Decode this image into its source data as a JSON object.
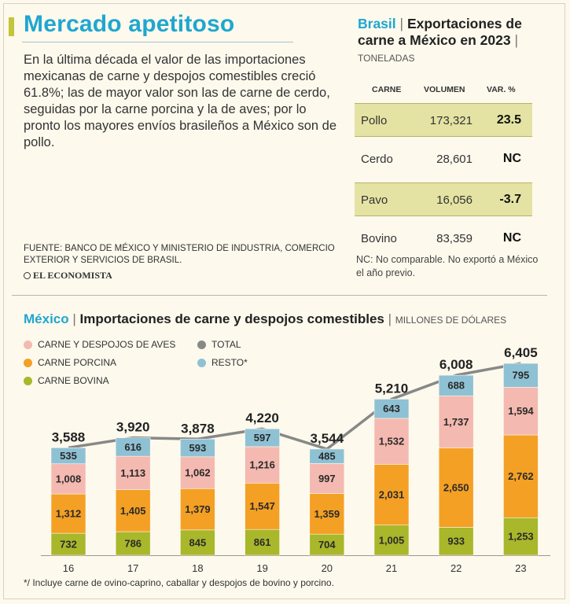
{
  "header": {
    "title": "Mercado apetitoso",
    "intro": "En la última década el valor de las importaciones mexicanas de carne y despojos comestibles creció 61.8%; las de mayor valor son las de carne de cerdo, seguidas por la carne porcina y la de aves; por lo pronto los mayores envíos brasileños a México son de pollo.",
    "source": "FUENTE: BANCO DE MÉXICO Y MINISTERIO DE INDUSTRIA, COMERCIO EXTERIOR Y SERVICIOS DE BRASIL.",
    "logo": "EL ECONOMISTA"
  },
  "brasil": {
    "country": "Brasil",
    "separator": "|",
    "title": "Exportaciones de carne a México en 2023",
    "unit": "TONELADAS",
    "columns": [
      "CARNE",
      "VOLUMEN",
      "VAR. %"
    ],
    "rows": [
      {
        "carne": "Pollo",
        "volumen": "173,321",
        "var": "23.5"
      },
      {
        "carne": "Cerdo",
        "volumen": "28,601",
        "var": "NC"
      },
      {
        "carne": "Pavo",
        "volumen": "16,056",
        "var": "-3.7"
      },
      {
        "carne": "Bovino",
        "volumen": "83,359",
        "var": "NC"
      }
    ],
    "note": "NC: No comparable. No exportó a México el año previo."
  },
  "mexico": {
    "country": "México",
    "separator": "|",
    "title": "Importaciones de carne y despojos comestibles",
    "unit": "MILLONES DE DÓLARES",
    "legend": {
      "aves": "CARNE Y DESPOJOS DE AVES",
      "porcina": "CARNE PORCINA",
      "bovina": "CARNE BOVINA",
      "total": "TOTAL",
      "resto": "RESTO*"
    },
    "footnote": "*/ Incluye carne de ovino-caprino, caballar y despojos de bovino y porcino."
  },
  "colors": {
    "bovina": "#a9b72a",
    "porcina": "#f4a024",
    "aves": "#f4b9b0",
    "resto": "#8fc1d4",
    "total": "#888888",
    "accent": "#1fa7cf",
    "shade": "#e4e3a3"
  },
  "chart_data": {
    "type": "bar",
    "stacked": true,
    "categories": [
      "16",
      "17",
      "18",
      "19",
      "20",
      "21",
      "22",
      "23"
    ],
    "series": [
      {
        "name": "CARNE BOVINA",
        "key": "bovina",
        "values": [
          732,
          786,
          845,
          861,
          704,
          1005,
          933,
          1253
        ]
      },
      {
        "name": "CARNE PORCINA",
        "key": "porcina",
        "values": [
          1312,
          1405,
          1379,
          1547,
          1359,
          2031,
          2650,
          2762
        ]
      },
      {
        "name": "CARNE Y DESPOJOS DE AVES",
        "key": "aves",
        "values": [
          1008,
          1113,
          1062,
          1216,
          997,
          1532,
          1737,
          1594
        ]
      },
      {
        "name": "RESTO*",
        "key": "resto",
        "values": [
          535,
          616,
          593,
          597,
          485,
          643,
          688,
          795
        ]
      }
    ],
    "total": {
      "name": "TOTAL",
      "values": [
        3588,
        3920,
        3878,
        4220,
        3544,
        5210,
        6008,
        6405
      ],
      "labels": [
        "3,588",
        "3,920",
        "3,878",
        "4,220",
        "3,544",
        "5,210",
        "6,008",
        "6,405"
      ]
    },
    "value_labels": {
      "bovina": [
        "732",
        "786",
        "845",
        "861",
        "704",
        "1,005",
        "933",
        "1,253"
      ],
      "porcina": [
        "1,312",
        "1,405",
        "1,379",
        "1,547",
        "1,359",
        "2,031",
        "2,650",
        "2,762"
      ],
      "aves": [
        "1,008",
        "1,113",
        "1,062",
        "1,216",
        "997",
        "1,532",
        "1,737",
        "1,594"
      ],
      "resto": [
        "535",
        "616",
        "593",
        "597",
        "485",
        "643",
        "688",
        "795"
      ]
    },
    "title": "Importaciones de carne y despojos comestibles",
    "ylabel": "MILLONES DE DÓLARES",
    "ylim": [
      0,
      6405
    ]
  }
}
